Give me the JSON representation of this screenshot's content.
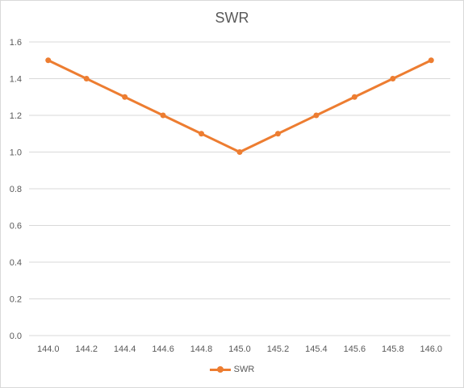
{
  "chart_data": {
    "type": "line",
    "title": "SWR",
    "xlabel": "",
    "ylabel": "",
    "categories": [
      "144.0",
      "144.2",
      "144.4",
      "144.6",
      "144.8",
      "145.0",
      "145.2",
      "145.4",
      "145.6",
      "145.8",
      "146.0"
    ],
    "y_ticks": [
      "0.0",
      "0.2",
      "0.4",
      "0.6",
      "0.8",
      "1.0",
      "1.2",
      "1.4",
      "1.6"
    ],
    "ylim": [
      0,
      1.6
    ],
    "grid": true,
    "legend_position": "bottom",
    "series": [
      {
        "name": "SWR",
        "color": "#ed7d31",
        "values": [
          1.5,
          1.4,
          1.3,
          1.2,
          1.1,
          1.0,
          1.1,
          1.2,
          1.3,
          1.4,
          1.5
        ]
      }
    ]
  }
}
